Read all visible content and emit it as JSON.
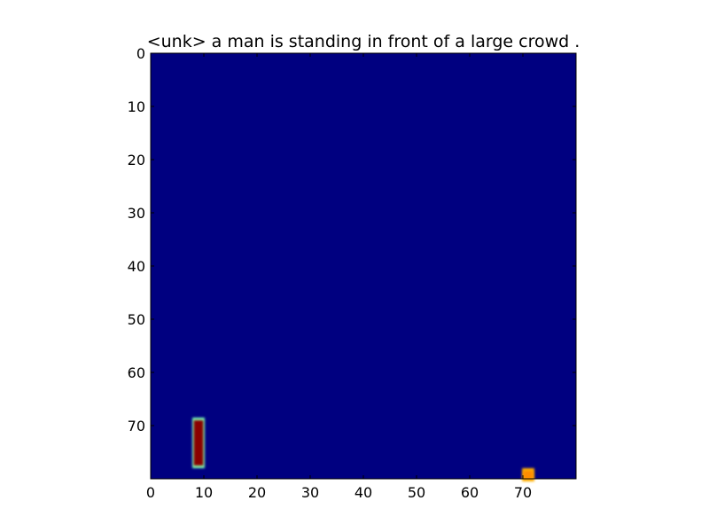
{
  "chart_data": {
    "type": "heatmap",
    "title": "<unk> a man is standing in front of a large crowd .",
    "xlabel": "",
    "ylabel": "",
    "xlim": [
      0,
      80
    ],
    "ylim": [
      80,
      0
    ],
    "grid": false,
    "colormap": "jet",
    "background_color": "#000080",
    "xticks": [
      0,
      10,
      20,
      30,
      40,
      50,
      60,
      70
    ],
    "yticks": [
      0,
      10,
      20,
      30,
      40,
      50,
      60,
      70
    ],
    "regions": [
      {
        "label": "left vertical bar",
        "x": 9,
        "y_range": [
          69,
          77.5
        ],
        "core_color": "#8a0000",
        "edge_color": "#7fffb0"
      },
      {
        "label": "bottom-right blob",
        "x": 71,
        "y_range": [
          78.5,
          80
        ],
        "core_color": "#ff8c00",
        "edge_color": "#ffb000"
      }
    ]
  }
}
